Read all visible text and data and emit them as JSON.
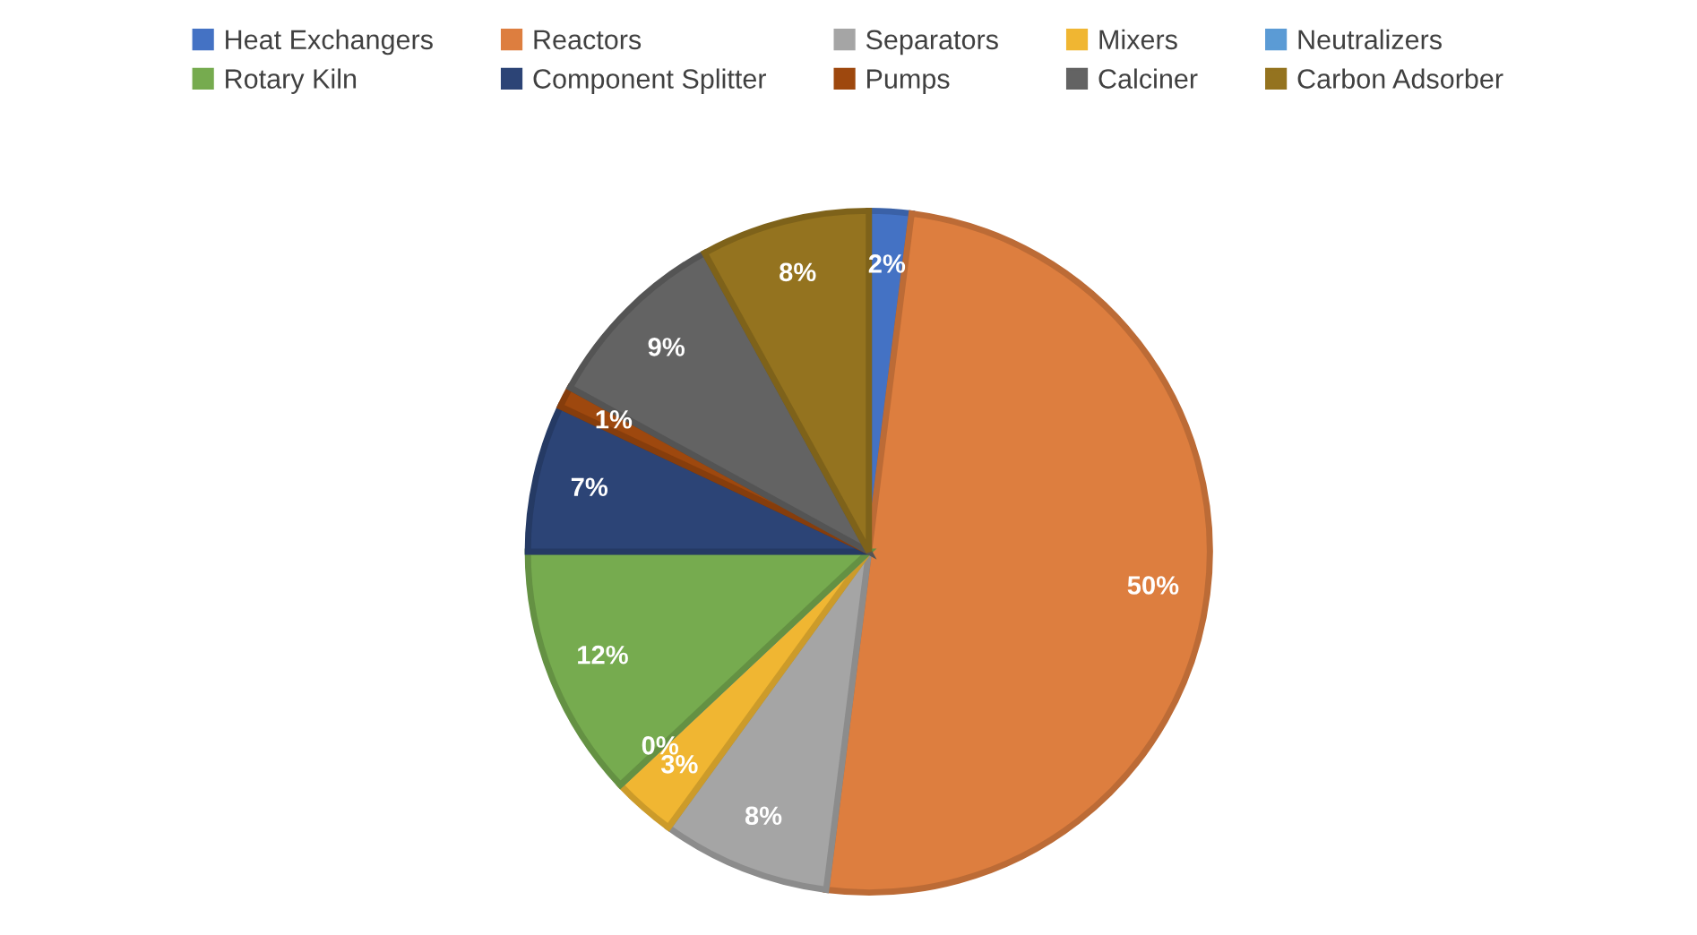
{
  "chart_data": {
    "type": "pie",
    "categories": [
      "Heat Exchangers",
      "Reactors",
      "Separators",
      "Mixers",
      "Neutralizers",
      "Rotary Kiln",
      "Component Splitter",
      "Pumps",
      "Calciner",
      "Carbon Adsorber"
    ],
    "values": [
      2,
      50,
      8,
      3,
      0,
      12,
      7,
      1,
      9,
      8
    ],
    "colors": [
      "#4472c4",
      "#dd7e3f",
      "#a5a5a5",
      "#f0b632",
      "#5b9bd5",
      "#76ab4f",
      "#2c4476",
      "#9e480e",
      "#636363",
      "#94731f"
    ],
    "value_labels": [
      "2%",
      "50%",
      "8%",
      "3%",
      "0%",
      "12%",
      "7%",
      "1%",
      "9%",
      "8%"
    ],
    "legend": "top"
  }
}
